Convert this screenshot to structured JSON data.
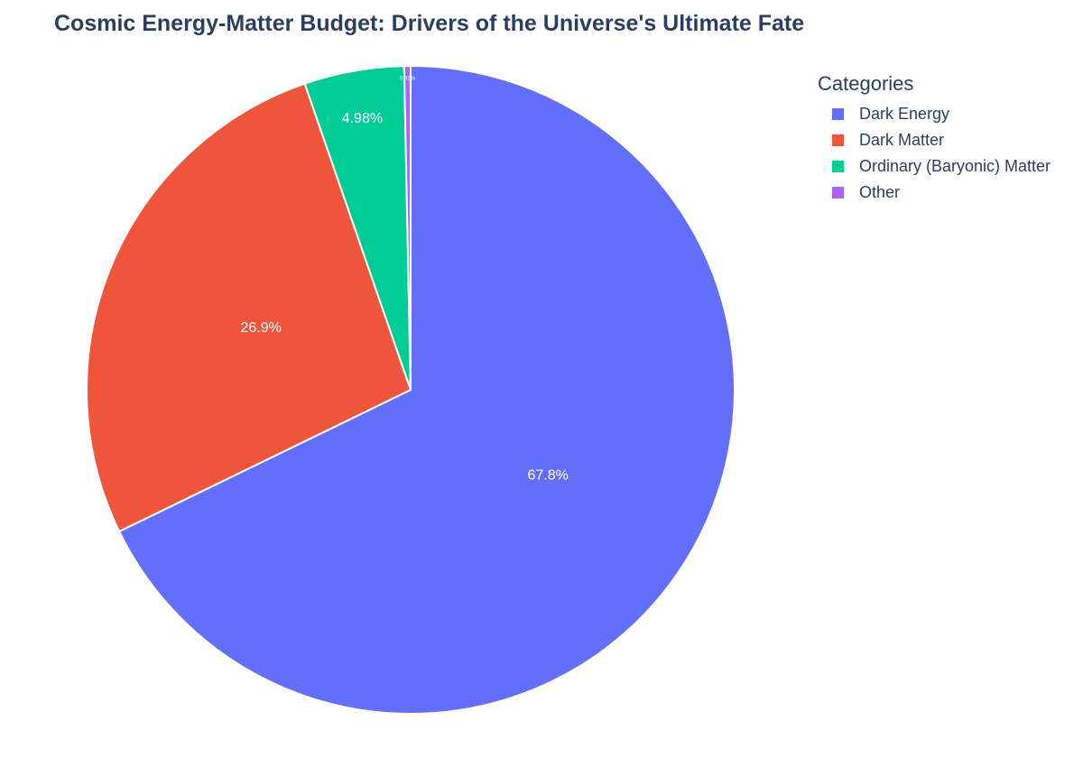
{
  "chart_data": {
    "type": "pie",
    "title": "Cosmic Energy-Matter Budget: Drivers of the Universe's Ultimate Fate",
    "labels": [
      "Dark Energy",
      "Dark Matter",
      "Ordinary (Baryonic) Matter",
      "Other"
    ],
    "values": [
      67.8,
      26.9,
      4.98,
      0.32
    ],
    "text_labels": [
      "67.8%",
      "26.9%",
      "4.98%",
      "0.32%"
    ],
    "colors": [
      "#636efa",
      "#ef553b",
      "#00cc96",
      "#ab63fa"
    ],
    "direction": "clockwise",
    "start": "top",
    "legend_title": "Categories",
    "legend_position": "top-right"
  }
}
